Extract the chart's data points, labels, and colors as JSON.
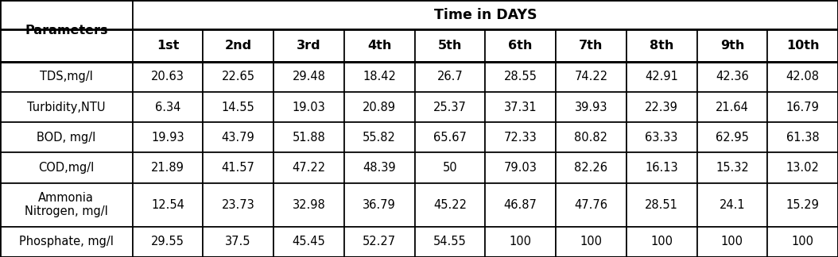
{
  "title": "Time in DAYS",
  "col_header": [
    "Parameters",
    "1st",
    "2nd",
    "3rd",
    "4th",
    "5th",
    "6th",
    "7th",
    "8th",
    "9th",
    "10th"
  ],
  "rows": [
    [
      "TDS,mg/l",
      "20.63",
      "22.65",
      "29.48",
      "18.42",
      "26.7",
      "28.55",
      "74.22",
      "42.91",
      "42.36",
      "42.08"
    ],
    [
      "Turbidity,NTU",
      "6.34",
      "14.55",
      "19.03",
      "20.89",
      "25.37",
      "37.31",
      "39.93",
      "22.39",
      "21.64",
      "16.79"
    ],
    [
      "BOD, mg/l",
      "19.93",
      "43.79",
      "51.88",
      "55.82",
      "65.67",
      "72.33",
      "80.82",
      "63.33",
      "62.95",
      "61.38"
    ],
    [
      "COD,mg/l",
      "21.89",
      "41.57",
      "47.22",
      "48.39",
      "50",
      "79.03",
      "82.26",
      "16.13",
      "15.32",
      "13.02"
    ],
    [
      "Ammonia\nNitrogen, mg/l",
      "12.54",
      "23.73",
      "32.98",
      "36.79",
      "45.22",
      "46.87",
      "47.76",
      "28.51",
      "24.1",
      "15.29"
    ],
    [
      "Phosphate, mg/l",
      "29.55",
      "37.5",
      "45.45",
      "52.27",
      "54.55",
      "100",
      "100",
      "100",
      "100",
      "100"
    ]
  ],
  "bg_color": "#ffffff",
  "text_color": "#000000",
  "border_color": "#000000",
  "font_size": 10.5,
  "header_font_size": 11.5,
  "title_font_size": 12.5,
  "fig_width": 10.54,
  "fig_height": 3.24,
  "dpi": 100
}
